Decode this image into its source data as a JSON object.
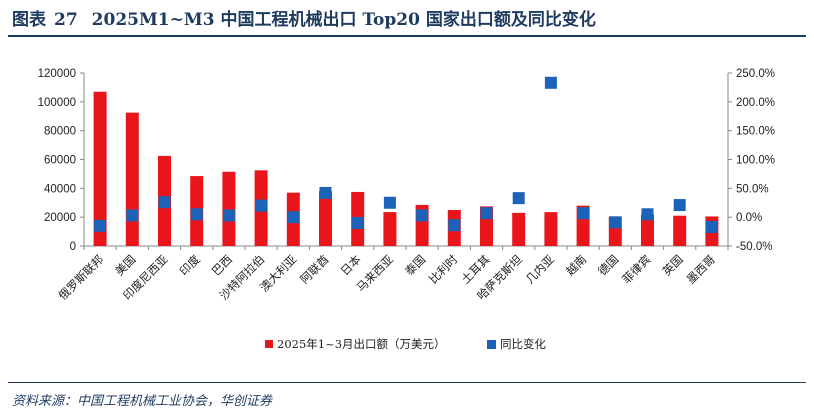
{
  "title": {
    "prefix": "图表",
    "number": "27",
    "text": "2025M1~M3 中国工程机械出口 Top20 国家出口额及同比变化"
  },
  "source": "资料来源：中国工程机械工业协会，华创证券",
  "colors": {
    "bar": "#e8161b",
    "marker": "#1c62b8",
    "rule": "#1f3a5f"
  },
  "chart_data": {
    "type": "bar",
    "categories": [
      "俄罗斯联邦",
      "美国",
      "印度尼西亚",
      "印度",
      "巴西",
      "沙特阿拉伯",
      "澳大利亚",
      "阿联酋",
      "日本",
      "马来西亚",
      "泰国",
      "比利时",
      "土耳其",
      "哈萨克斯坦",
      "几内亚",
      "越南",
      "德国",
      "菲律宾",
      "英国",
      "墨西哥"
    ],
    "series": [
      {
        "name": "2025年1~3月出口额（万美元）",
        "type": "bar",
        "axis": "left",
        "values": [
          107000,
          92500,
          62500,
          48500,
          51500,
          52500,
          37000,
          38000,
          37500,
          23500,
          28500,
          25000,
          27500,
          23000,
          23500,
          28000,
          20500,
          22000,
          21000,
          20500
        ]
      },
      {
        "name": "同比变化",
        "type": "scatter",
        "axis": "right",
        "values": [
          -15,
          3,
          26,
          5,
          3,
          20,
          0,
          42,
          -10,
          25,
          3,
          -14,
          7,
          33,
          233,
          7,
          -9,
          5,
          21,
          -17
        ]
      }
    ],
    "y_left": {
      "min": 0,
      "max": 120000,
      "ticks": [
        "0",
        "20000",
        "40000",
        "60000",
        "80000",
        "100000",
        "120000"
      ]
    },
    "y_right": {
      "min": -50,
      "max": 250,
      "ticks": [
        "-50.0%",
        "0.0%",
        "50.0%",
        "100.0%",
        "150.0%",
        "200.0%",
        "250.0%"
      ]
    },
    "legend": {
      "position": "bottom"
    },
    "grid": false
  }
}
